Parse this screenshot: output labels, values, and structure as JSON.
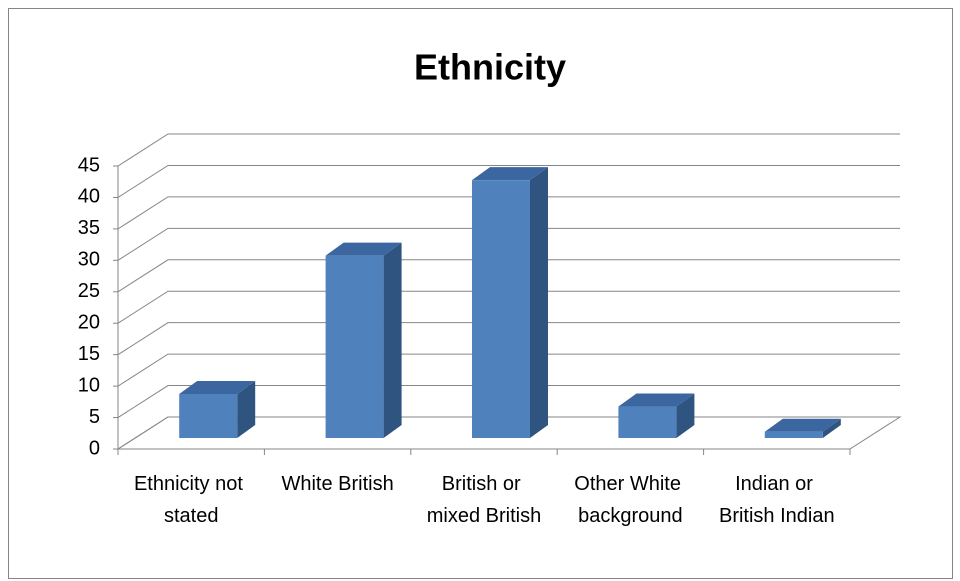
{
  "chart_data": {
    "type": "bar3d",
    "title": "Ethnicity",
    "categories": [
      "Ethnicity not stated",
      "White British",
      "British or mixed British",
      "Other White background",
      "Indian or British Indian"
    ],
    "values": [
      7,
      29,
      41,
      5,
      1
    ],
    "color": "#4f81bd",
    "ylim": [
      0,
      45
    ],
    "yticks": [
      0,
      5,
      10,
      15,
      20,
      25,
      30,
      35,
      40,
      45
    ],
    "grid": true
  }
}
